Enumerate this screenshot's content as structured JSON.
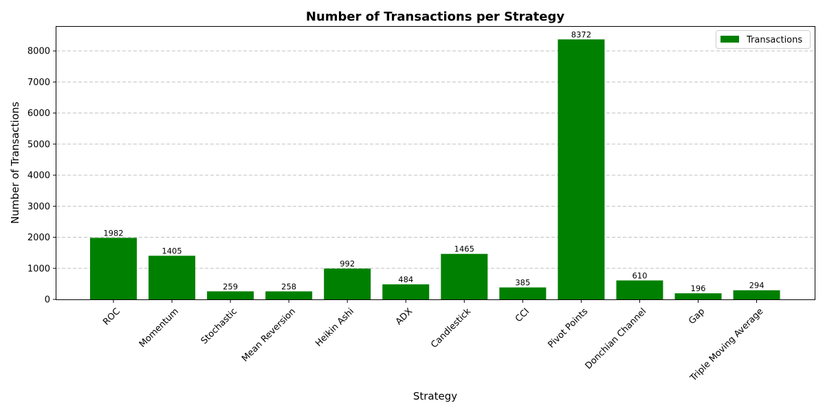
{
  "chart_data": {
    "type": "bar",
    "title": "Number of Transactions per Strategy",
    "xlabel": "Strategy",
    "ylabel": "Number of Transactions",
    "categories": [
      "ROC",
      "Momentum",
      "Stochastic",
      "Mean Reversion",
      "Heikin Ashi",
      "ADX",
      "Candlestick",
      "CCI",
      "Pivot Points",
      "Donchian Channel",
      "Gap",
      "Triple Moving Average"
    ],
    "series": [
      {
        "name": "Transactions",
        "values": [
          1982,
          1405,
          259,
          258,
          992,
          484,
          1465,
          385,
          8372,
          610,
          196,
          294
        ],
        "color": "#008000"
      }
    ],
    "ylim": [
      0,
      8800
    ],
    "yticks": [
      0,
      1000,
      2000,
      3000,
      4000,
      5000,
      6000,
      7000,
      8000
    ],
    "grid": "y-dashed",
    "legend_position": "top-right",
    "data_labels": true
  }
}
